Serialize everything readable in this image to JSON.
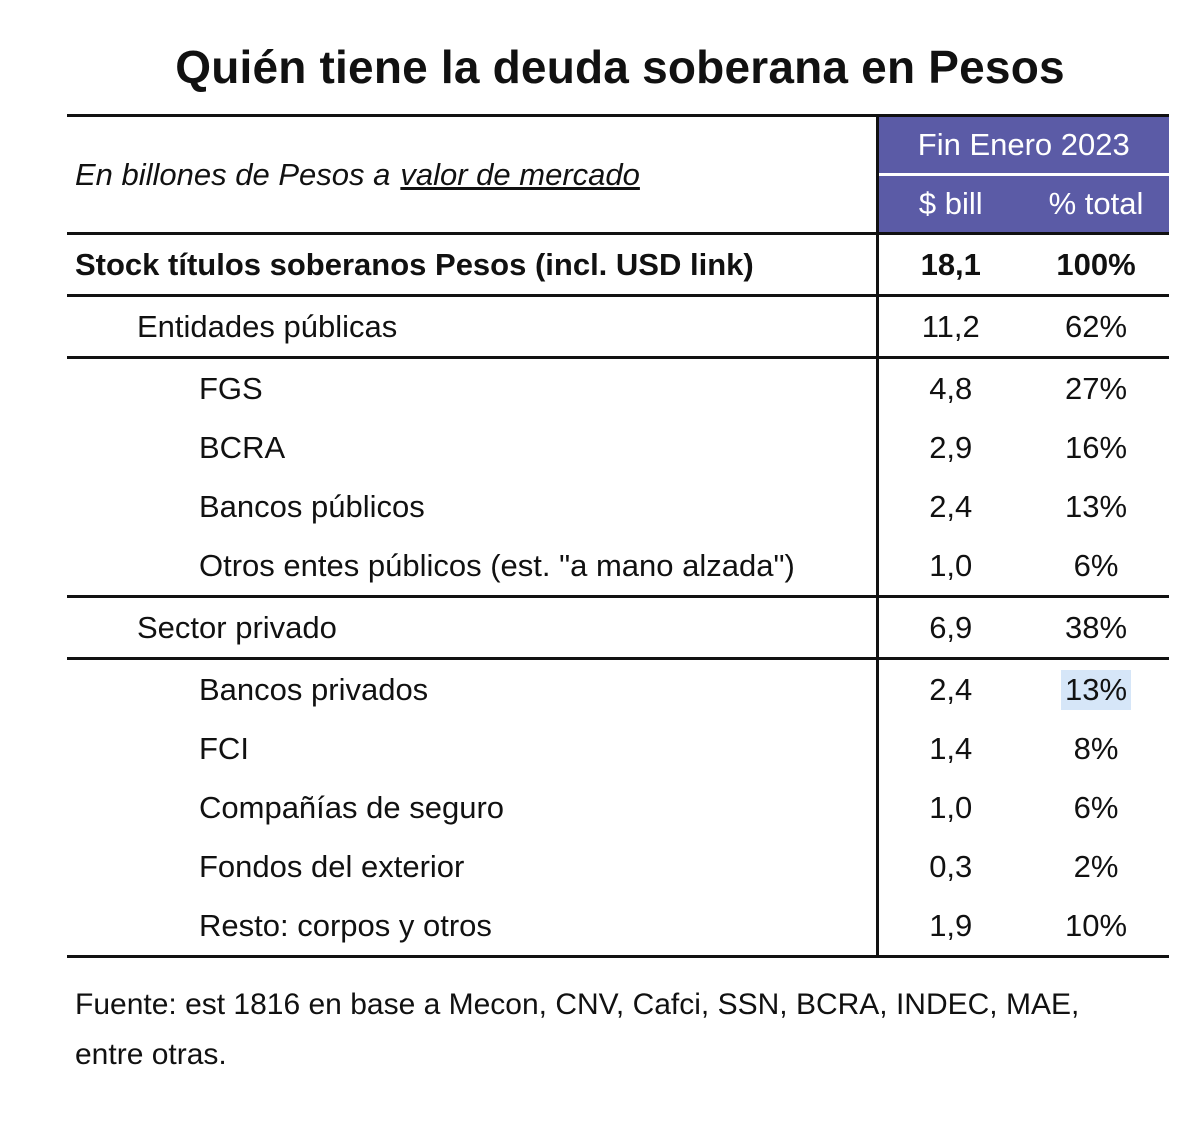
{
  "title": "Quién tiene la deuda soberana en Pesos",
  "header": {
    "caption_prefix": "En billones de Pesos a",
    "caption_underlined": "valor de mercado",
    "period": "Fin Enero 2023",
    "col_value": "$ bill",
    "col_pct": "% total"
  },
  "colors": {
    "header_bg": "#5b5ba6",
    "highlight_bg": "#d6e6f8"
  },
  "chart_data": {
    "type": "table",
    "title": "Quién tiene la deuda soberana en Pesos",
    "columns": [
      "$ bill",
      "% total"
    ],
    "rows": [
      {
        "label": "Stock títulos soberanos Pesos (incl. USD link)",
        "value": "18,1",
        "pct": "100%",
        "level": 0
      },
      {
        "label": "Entidades públicas",
        "value": "11,2",
        "pct": "62%",
        "level": 1
      },
      {
        "label": "FGS",
        "value": "4,8",
        "pct": "27%",
        "level": 2
      },
      {
        "label": "BCRA",
        "value": "2,9",
        "pct": "16%",
        "level": 2
      },
      {
        "label": "Bancos públicos",
        "value": "2,4",
        "pct": "13%",
        "level": 2
      },
      {
        "label": "Otros entes públicos (est. \"a mano alzada\")",
        "value": "1,0",
        "pct": "6%",
        "level": 2
      },
      {
        "label": "Sector privado",
        "value": "6,9",
        "pct": "38%",
        "level": 1
      },
      {
        "label": "Bancos privados",
        "value": "2,4",
        "pct": "13%",
        "level": 2
      },
      {
        "label": "FCI",
        "value": "1,4",
        "pct": "8%",
        "level": 2
      },
      {
        "label": "Compañías de seguro",
        "value": "1,0",
        "pct": "6%",
        "level": 2
      },
      {
        "label": "Fondos del exterior",
        "value": "0,3",
        "pct": "2%",
        "level": 2
      },
      {
        "label": "Resto: corpos y otros",
        "value": "1,9",
        "pct": "10%",
        "level": 2
      }
    ]
  },
  "footer": "Fuente: est 1816 en base a Mecon, CNV, Cafci, SSN, BCRA, INDEC, MAE, entre otras."
}
